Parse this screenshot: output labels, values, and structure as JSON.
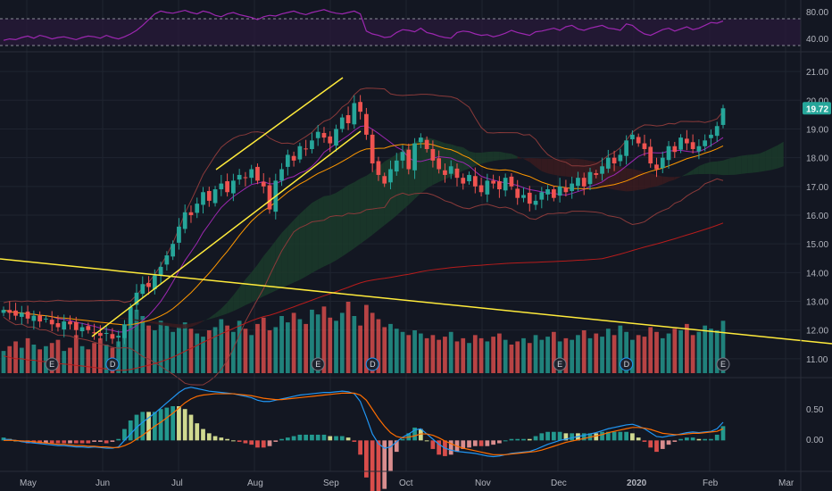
{
  "colors": {
    "background": "#131722",
    "grid": "#1f2430",
    "up": "#26a69a",
    "down": "#ef5350",
    "rsi": "#9c27b0",
    "trendline": "#ffeb3b",
    "cloud_bull": "#1b3b2a",
    "cloud_bear": "#3b1b1f",
    "bb": "#8a3a3a",
    "ma_orange": "#ff9800",
    "ma_purple": "#9c27b0",
    "ma_red": "#b71c1c",
    "macd": "#2196f3",
    "signal": "#ff6d00",
    "hist_up": "#a5d6a7",
    "hist_up_light": "#e6ee9c",
    "hist_down": "#ef9a9a",
    "price_tag_bg": "#26a69a"
  },
  "chart_data": {
    "type": "candlestick",
    "x_axis": {
      "tick_labels": [
        "May",
        "Jun",
        "Jul",
        "Aug",
        "Sep",
        "Oct",
        "Nov",
        "Dec",
        "2020",
        "Feb",
        "Mar"
      ]
    },
    "rsi_panel": {
      "tick_labels": [
        "80.00",
        "40.00"
      ],
      "ylim": [
        30,
        90
      ],
      "upper_band": 70,
      "lower_band": 30,
      "values": [
        41,
        43,
        42,
        45,
        47,
        44,
        48,
        46,
        43,
        45,
        46,
        44,
        42,
        45,
        47,
        46,
        44,
        48,
        45,
        43,
        46,
        50,
        55,
        62,
        70,
        78,
        82,
        80,
        79,
        81,
        83,
        80,
        78,
        82,
        80,
        76,
        74,
        78,
        80,
        77,
        75,
        73,
        70,
        74,
        76,
        75,
        78,
        80,
        82,
        79,
        77,
        80,
        82,
        84,
        81,
        79,
        78,
        80,
        82,
        78,
        54,
        50,
        48,
        45,
        46,
        52,
        56,
        55,
        53,
        58,
        52,
        50,
        47,
        45,
        44,
        52,
        54,
        53,
        50,
        48,
        49,
        46,
        48,
        51,
        55,
        52,
        50,
        48,
        53,
        54,
        56,
        58,
        55,
        60,
        62,
        57,
        55,
        58,
        60,
        62,
        58,
        57,
        55,
        64,
        62,
        55,
        50,
        48,
        52,
        56,
        58,
        54,
        57,
        60,
        56,
        58,
        62,
        66,
        65,
        68
      ]
    },
    "price_panel": {
      "tick_labels": [
        "21.00",
        "20.00",
        "19.00",
        "18.00",
        "17.00",
        "16.00",
        "15.00",
        "14.00",
        "13.00",
        "12.00",
        "11.00"
      ],
      "ylim": [
        10.5,
        21.5
      ],
      "last_price": "19.72",
      "closes": [
        12.7,
        12.6,
        12.5,
        12.6,
        12.4,
        12.5,
        12.3,
        12.4,
        12.2,
        12.1,
        12.3,
        12.2,
        12.0,
        12.1,
        12.0,
        11.9,
        11.8,
        11.9,
        11.7,
        11.8,
        12.2,
        12.8,
        13.3,
        13.6,
        13.5,
        13.9,
        14.2,
        14.6,
        15.0,
        15.6,
        16.1,
        16.0,
        16.4,
        16.8,
        16.5,
        16.9,
        17.1,
        16.8,
        17.2,
        17.4,
        17.3,
        17.6,
        17.2,
        17.0,
        16.2,
        17.2,
        17.6,
        18.1,
        17.9,
        18.4,
        18.3,
        18.6,
        18.9,
        18.7,
        18.5,
        19.0,
        19.4,
        19.2,
        19.9,
        19.6,
        18.8,
        17.8,
        17.4,
        17.1,
        17.6,
        17.9,
        18.2,
        17.6,
        18.5,
        18.7,
        18.3,
        17.9,
        17.6,
        17.4,
        17.7,
        17.3,
        17.1,
        17.4,
        17.0,
        16.8,
        17.2,
        17.1,
        16.9,
        17.3,
        17.0,
        16.6,
        16.7,
        16.4,
        16.5,
        16.8,
        16.9,
        16.6,
        17.0,
        16.8,
        17.1,
        17.3,
        17.0,
        17.5,
        17.4,
        17.7,
        18.0,
        17.8,
        18.1,
        18.6,
        18.8,
        18.5,
        18.3,
        17.8,
        17.6,
        18.0,
        18.4,
        18.2,
        18.7,
        18.5,
        18.3,
        18.4,
        18.6,
        18.8,
        19.1,
        19.72
      ],
      "volumes": [
        14,
        17,
        20,
        16,
        22,
        18,
        15,
        17,
        19,
        21,
        14,
        16,
        24,
        17,
        15,
        19,
        22,
        18,
        16,
        20,
        28,
        34,
        40,
        36,
        30,
        27,
        33,
        30,
        26,
        29,
        32,
        28,
        25,
        23,
        27,
        29,
        34,
        30,
        26,
        33,
        28,
        24,
        31,
        35,
        27,
        29,
        36,
        32,
        38,
        34,
        31,
        40,
        37,
        42,
        35,
        33,
        38,
        45,
        36,
        30,
        43,
        38,
        34,
        29,
        31,
        28,
        26,
        24,
        27,
        25,
        22,
        24,
        21,
        23,
        26,
        20,
        22,
        19,
        24,
        22,
        20,
        23,
        25,
        21,
        18,
        20,
        22,
        19,
        24,
        21,
        23,
        26,
        20,
        22,
        21,
        24,
        27,
        22,
        25,
        23,
        28,
        24,
        30,
        26,
        21,
        24,
        23,
        29,
        26,
        22,
        25,
        28,
        27,
        31,
        24,
        26,
        30,
        28,
        27,
        33
      ]
    },
    "macd_panel": {
      "tick_labels": [
        "0.50",
        "0.00"
      ],
      "ylim": [
        -0.45,
        0.9
      ],
      "macd": [
        0.02,
        0.01,
        0.0,
        -0.02,
        -0.03,
        -0.04,
        -0.05,
        -0.06,
        -0.07,
        -0.08,
        -0.08,
        -0.09,
        -0.1,
        -0.1,
        -0.11,
        -0.1,
        -0.11,
        -0.12,
        -0.12,
        -0.1,
        0.0,
        0.1,
        0.2,
        0.28,
        0.35,
        0.42,
        0.5,
        0.58,
        0.66,
        0.74,
        0.8,
        0.82,
        0.8,
        0.78,
        0.76,
        0.75,
        0.74,
        0.73,
        0.72,
        0.7,
        0.68,
        0.66,
        0.62,
        0.6,
        0.6,
        0.62,
        0.64,
        0.66,
        0.68,
        0.7,
        0.71,
        0.72,
        0.73,
        0.74,
        0.74,
        0.75,
        0.76,
        0.75,
        0.72,
        0.6,
        0.36,
        0.1,
        -0.05,
        -0.12,
        -0.1,
        -0.02,
        0.05,
        0.1,
        0.16,
        0.18,
        0.1,
        0.02,
        -0.06,
        -0.12,
        -0.15,
        -0.17,
        -0.18,
        -0.19,
        -0.2,
        -0.22,
        -0.24,
        -0.25,
        -0.24,
        -0.22,
        -0.2,
        -0.19,
        -0.18,
        -0.17,
        -0.14,
        -0.1,
        -0.06,
        -0.03,
        0.0,
        0.02,
        0.04,
        0.06,
        0.08,
        0.1,
        0.12,
        0.15,
        0.18,
        0.2,
        0.22,
        0.24,
        0.25,
        0.22,
        0.18,
        0.12,
        0.06,
        0.05,
        0.07,
        0.08,
        0.1,
        0.12,
        0.13,
        0.12,
        0.13,
        0.14,
        0.18,
        0.28
      ],
      "signal": [
        0.0,
        0.0,
        0.0,
        -0.01,
        -0.01,
        -0.02,
        -0.03,
        -0.04,
        -0.05,
        -0.06,
        -0.06,
        -0.07,
        -0.08,
        -0.08,
        -0.09,
        -0.09,
        -0.1,
        -0.1,
        -0.11,
        -0.11,
        -0.08,
        -0.04,
        0.02,
        0.08,
        0.15,
        0.22,
        0.28,
        0.35,
        0.42,
        0.5,
        0.58,
        0.64,
        0.68,
        0.7,
        0.71,
        0.72,
        0.72,
        0.72,
        0.72,
        0.71,
        0.7,
        0.69,
        0.67,
        0.65,
        0.64,
        0.63,
        0.63,
        0.64,
        0.65,
        0.66,
        0.67,
        0.68,
        0.69,
        0.7,
        0.71,
        0.72,
        0.73,
        0.73,
        0.73,
        0.7,
        0.62,
        0.48,
        0.34,
        0.22,
        0.12,
        0.06,
        0.04,
        0.05,
        0.07,
        0.1,
        0.1,
        0.08,
        0.04,
        -0.01,
        -0.05,
        -0.09,
        -0.12,
        -0.14,
        -0.16,
        -0.18,
        -0.2,
        -0.22,
        -0.22,
        -0.22,
        -0.21,
        -0.2,
        -0.19,
        -0.18,
        -0.17,
        -0.15,
        -0.12,
        -0.09,
        -0.06,
        -0.03,
        -0.01,
        0.01,
        0.03,
        0.05,
        0.07,
        0.09,
        0.12,
        0.14,
        0.16,
        0.18,
        0.2,
        0.2,
        0.19,
        0.17,
        0.14,
        0.11,
        0.1,
        0.09,
        0.09,
        0.1,
        0.11,
        0.11,
        0.12,
        0.13,
        0.14,
        0.18
      ]
    },
    "annotations": {
      "earnings_label": "E",
      "dividend_label": "D",
      "events": [
        {
          "type": "E",
          "x_index": 8
        },
        {
          "type": "D",
          "x_index": 18
        },
        {
          "type": "E",
          "x_index": 52
        },
        {
          "type": "D",
          "x_index": 61
        },
        {
          "type": "E",
          "x_index": 92
        },
        {
          "type": "D",
          "x_index": 103
        },
        {
          "type": "E",
          "x_index": 119
        }
      ]
    }
  }
}
